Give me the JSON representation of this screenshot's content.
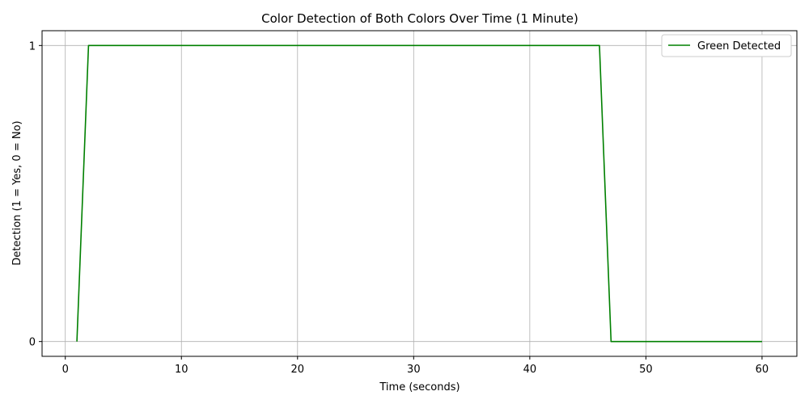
{
  "chart_data": {
    "type": "line",
    "title": "Color Detection of Both Colors Over Time (1 Minute)",
    "xlabel": "Time (seconds)",
    "ylabel": "Detection (1 = Yes, 0 = No)",
    "xlim": [
      -2,
      63
    ],
    "ylim": [
      -0.05,
      1.05
    ],
    "x_ticks": [
      0,
      10,
      20,
      30,
      40,
      50,
      60
    ],
    "y_ticks": [
      0,
      1
    ],
    "x_tick_labels": [
      "0",
      "10",
      "20",
      "30",
      "40",
      "50",
      "60"
    ],
    "y_tick_labels": [
      "0",
      "1"
    ],
    "grid": true,
    "legend": "upper-right",
    "series": [
      {
        "name": "Green Detected",
        "color": "#008000",
        "x": [
          1,
          2,
          46,
          47,
          60
        ],
        "y": [
          0,
          1,
          1,
          0,
          0
        ]
      }
    ]
  }
}
